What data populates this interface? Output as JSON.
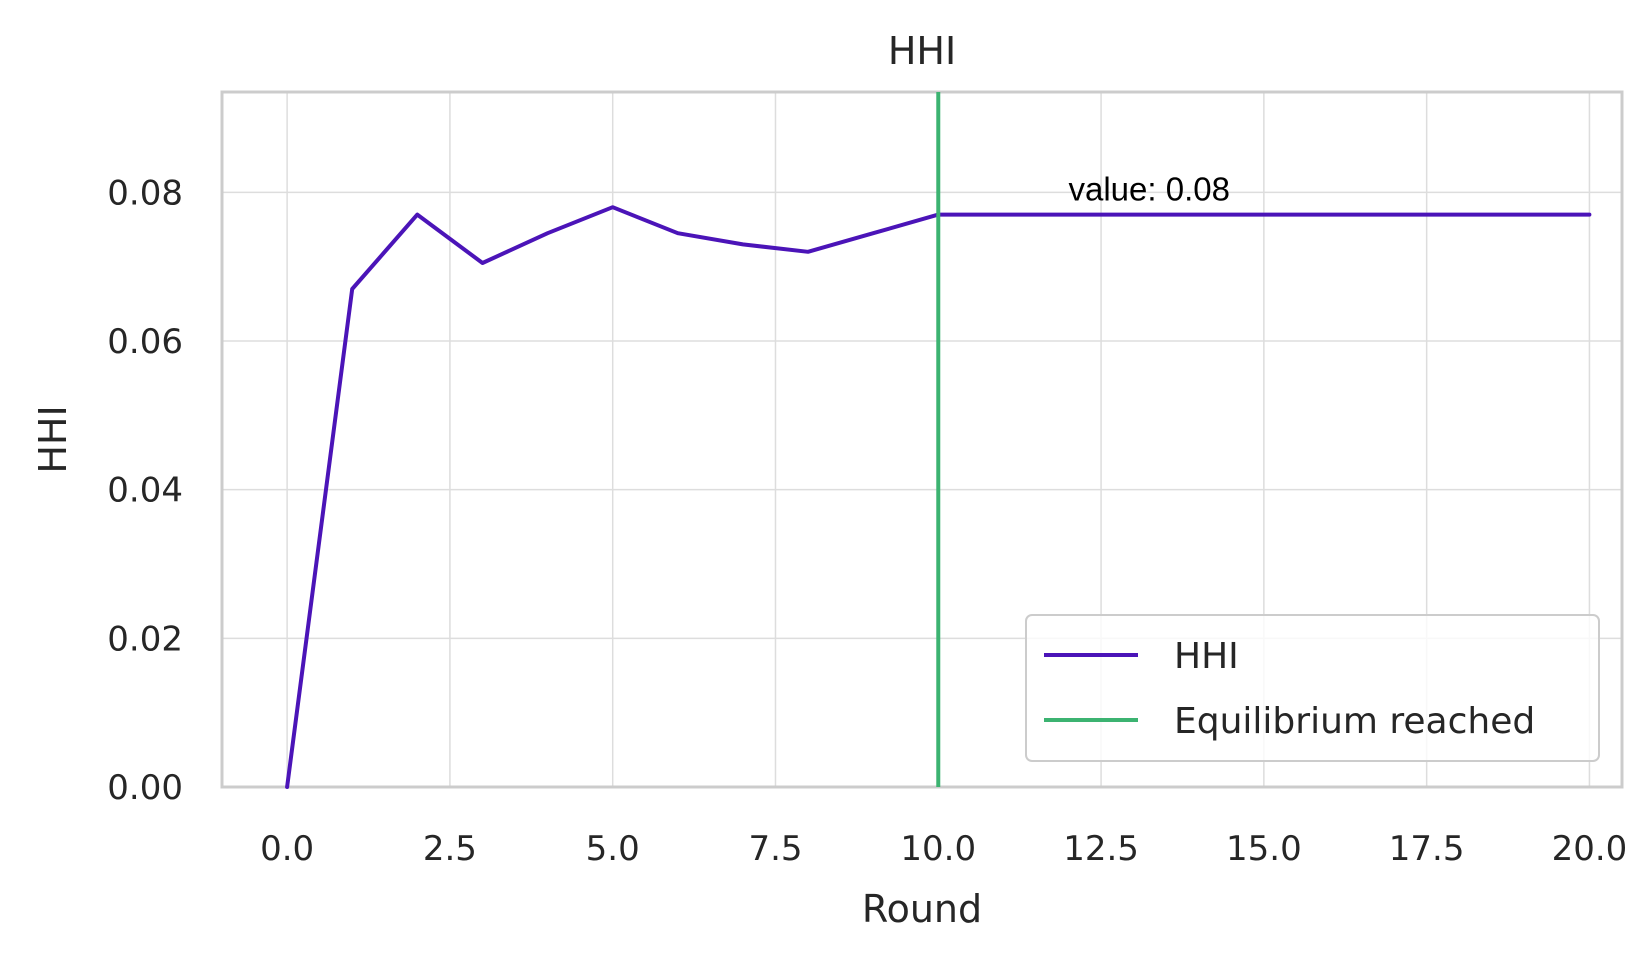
{
  "chart_data": {
    "type": "line",
    "title": "HHI",
    "xlabel": "Round",
    "ylabel": "HHI",
    "xlim": [
      -1,
      20.5
    ],
    "ylim": [
      0,
      0.0935
    ],
    "xticks": [
      0,
      2.5,
      5,
      7.5,
      10,
      12.5,
      15,
      17.5,
      20
    ],
    "xtick_labels": [
      "0.0",
      "2.5",
      "5.0",
      "7.5",
      "10.0",
      "12.5",
      "15.0",
      "17.5",
      "20.0"
    ],
    "yticks": [
      0,
      0.02,
      0.04,
      0.06,
      0.08
    ],
    "ytick_labels": [
      "0.00",
      "0.02",
      "0.04",
      "0.06",
      "0.08"
    ],
    "grid": true,
    "legend_position": "lower right",
    "series": [
      {
        "name": "HHI",
        "color": "#4b14b8",
        "x": [
          0,
          1,
          2,
          3,
          4,
          5,
          6,
          7,
          8,
          9,
          10,
          11,
          12,
          13,
          14,
          15,
          16,
          17,
          18,
          19,
          20
        ],
        "y": [
          0.0,
          0.067,
          0.077,
          0.0705,
          0.0745,
          0.078,
          0.0745,
          0.073,
          0.072,
          0.0745,
          0.077,
          0.077,
          0.077,
          0.077,
          0.077,
          0.077,
          0.077,
          0.077,
          0.077,
          0.077,
          0.077
        ]
      }
    ],
    "vlines": [
      {
        "name": "Equilibrium reached",
        "x": 10,
        "color": "#3cb371"
      }
    ],
    "annotations": [
      {
        "text": "value: 0.08",
        "x": 12,
        "y": 0.0805
      }
    ]
  }
}
